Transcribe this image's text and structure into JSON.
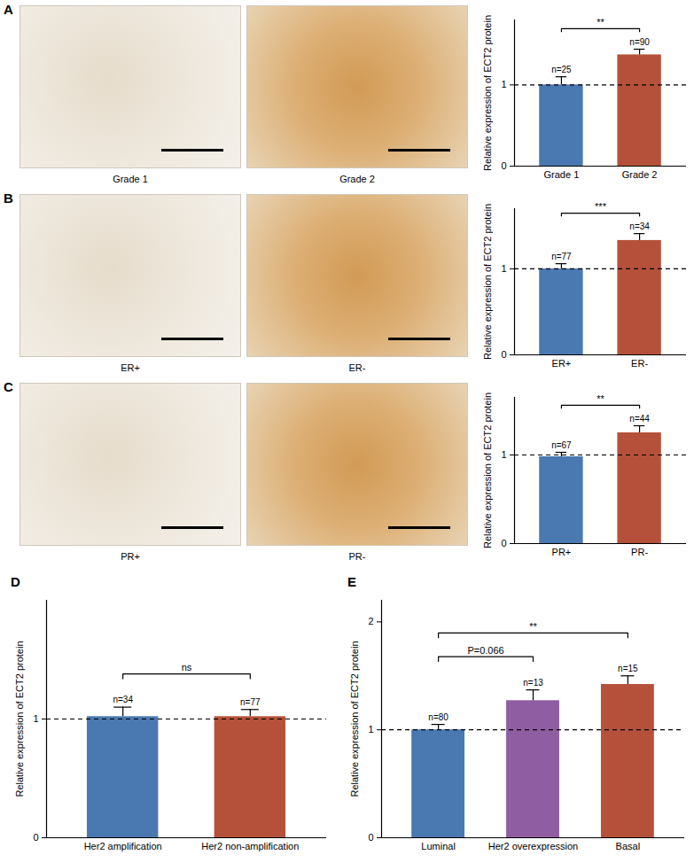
{
  "chart_data": [
    {
      "type": "bar",
      "panel": "A",
      "image_labels": [
        "Grade 1",
        "Grade 2"
      ],
      "categories": [
        "Grade 1",
        "Grade 2"
      ],
      "values": [
        1.0,
        1.37
      ],
      "errors": [
        0.1,
        0.07
      ],
      "n_labels": [
        "n=25",
        "n=90"
      ],
      "colors": [
        "#4a78b0",
        "#b5513a"
      ],
      "y_label": "Relative expression of ECT2 protein",
      "ylim": [
        0,
        1.8
      ],
      "yticks": [
        0,
        1
      ],
      "reference_line": 1,
      "comparisons": [
        {
          "from": 0,
          "to": 1,
          "label": "**"
        }
      ]
    },
    {
      "type": "bar",
      "panel": "B",
      "image_labels": [
        "ER+",
        "ER-"
      ],
      "categories": [
        "ER+",
        "ER-"
      ],
      "values": [
        1.0,
        1.33
      ],
      "errors": [
        0.06,
        0.08
      ],
      "n_labels": [
        "n=77",
        "n=34"
      ],
      "colors": [
        "#4a78b0",
        "#b5513a"
      ],
      "y_label": "Relative expression of ECT2 protein",
      "ylim": [
        0,
        1.7
      ],
      "yticks": [
        0,
        1
      ],
      "reference_line": 1,
      "comparisons": [
        {
          "from": 0,
          "to": 1,
          "label": "***"
        }
      ]
    },
    {
      "type": "bar",
      "panel": "C",
      "image_labels": [
        "PR+",
        "PR-"
      ],
      "categories": [
        "PR+",
        "PR-"
      ],
      "values": [
        0.98,
        1.25
      ],
      "errors": [
        0.05,
        0.08
      ],
      "n_labels": [
        "n=67",
        "n=44"
      ],
      "colors": [
        "#4a78b0",
        "#b5513a"
      ],
      "y_label": "Relative expression of ECT2 protein",
      "ylim": [
        0,
        1.65
      ],
      "yticks": [
        0,
        1
      ],
      "reference_line": 1,
      "comparisons": [
        {
          "from": 0,
          "to": 1,
          "label": "**"
        }
      ]
    },
    {
      "type": "bar",
      "panel": "D",
      "categories": [
        "Her2 amplification",
        "Her2 non-amplification"
      ],
      "values": [
        1.02,
        1.02
      ],
      "errors": [
        0.08,
        0.06
      ],
      "n_labels": [
        "n=34",
        "n=77"
      ],
      "colors": [
        "#4a78b0",
        "#b5513a"
      ],
      "y_label": "Relative expression of ECT2 protein",
      "ylim": [
        0,
        2
      ],
      "yticks": [
        0,
        1
      ],
      "reference_line": 1,
      "comparisons": [
        {
          "from": 0,
          "to": 1,
          "label": "ns"
        }
      ]
    },
    {
      "type": "bar",
      "panel": "E",
      "categories": [
        "Luminal",
        "Her2 overexpression",
        "Basal"
      ],
      "values": [
        1.0,
        1.27,
        1.42
      ],
      "errors": [
        0.05,
        0.1,
        0.08
      ],
      "n_labels": [
        "n=80",
        "n=13",
        "n=15"
      ],
      "colors": [
        "#4a78b0",
        "#8f5da1",
        "#b5513a"
      ],
      "y_label": "Relative expression of ECT2 protein",
      "ylim": [
        0,
        2.2
      ],
      "yticks": [
        0,
        1,
        2
      ],
      "reference_line": 1,
      "comparisons": [
        {
          "from": 0,
          "to": 1,
          "label": "P=0.066"
        },
        {
          "from": 0,
          "to": 2,
          "label": "**"
        }
      ]
    }
  ]
}
